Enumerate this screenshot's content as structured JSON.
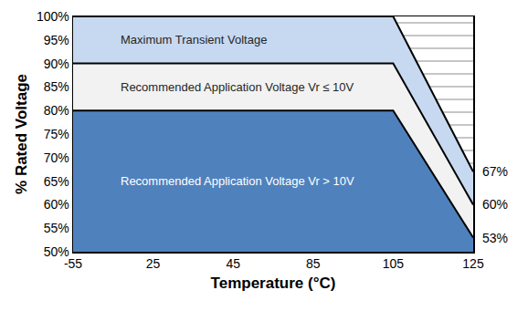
{
  "chart_data": {
    "type": "area",
    "x_label": "Temperature (°C)",
    "y_label": "% Rated Voltage",
    "categories": [
      "-55",
      "25",
      "45",
      "85",
      "105",
      "125"
    ],
    "series": [
      {
        "name": "Maximum Transient Voltage",
        "color": "#c6d9f1",
        "values": [
          100,
          100,
          100,
          100,
          100,
          67
        ],
        "value_labels": [
          null,
          null,
          null,
          null,
          null,
          "67%"
        ]
      },
      {
        "name": "Recommended Application Voltage Vr ≤ 10V",
        "color": "#f2f2f2",
        "values": [
          90,
          90,
          90,
          90,
          90,
          60
        ],
        "value_labels": [
          null,
          null,
          null,
          null,
          null,
          "60%"
        ]
      },
      {
        "name": "Recommended Application Voltage Vr > 10V",
        "color": "#4f81bd",
        "values": [
          80,
          80,
          80,
          80,
          80,
          53
        ],
        "value_labels": [
          null,
          null,
          null,
          null,
          null,
          "53%"
        ]
      }
    ],
    "ylim": [
      50,
      100
    ],
    "yticks": [
      {
        "value": 50,
        "label": "50%"
      },
      {
        "value": 55,
        "label": "55%"
      },
      {
        "value": 60,
        "label": "60%"
      },
      {
        "value": 65,
        "label": "65%"
      },
      {
        "value": 70,
        "label": "70%"
      },
      {
        "value": 75,
        "label": "75%"
      },
      {
        "value": 80,
        "label": "80%"
      },
      {
        "value": 85,
        "label": "85%"
      },
      {
        "value": 90,
        "label": "90%"
      },
      {
        "value": 95,
        "label": "95%"
      },
      {
        "value": 100,
        "label": "100%"
      }
    ],
    "grid": false
  }
}
